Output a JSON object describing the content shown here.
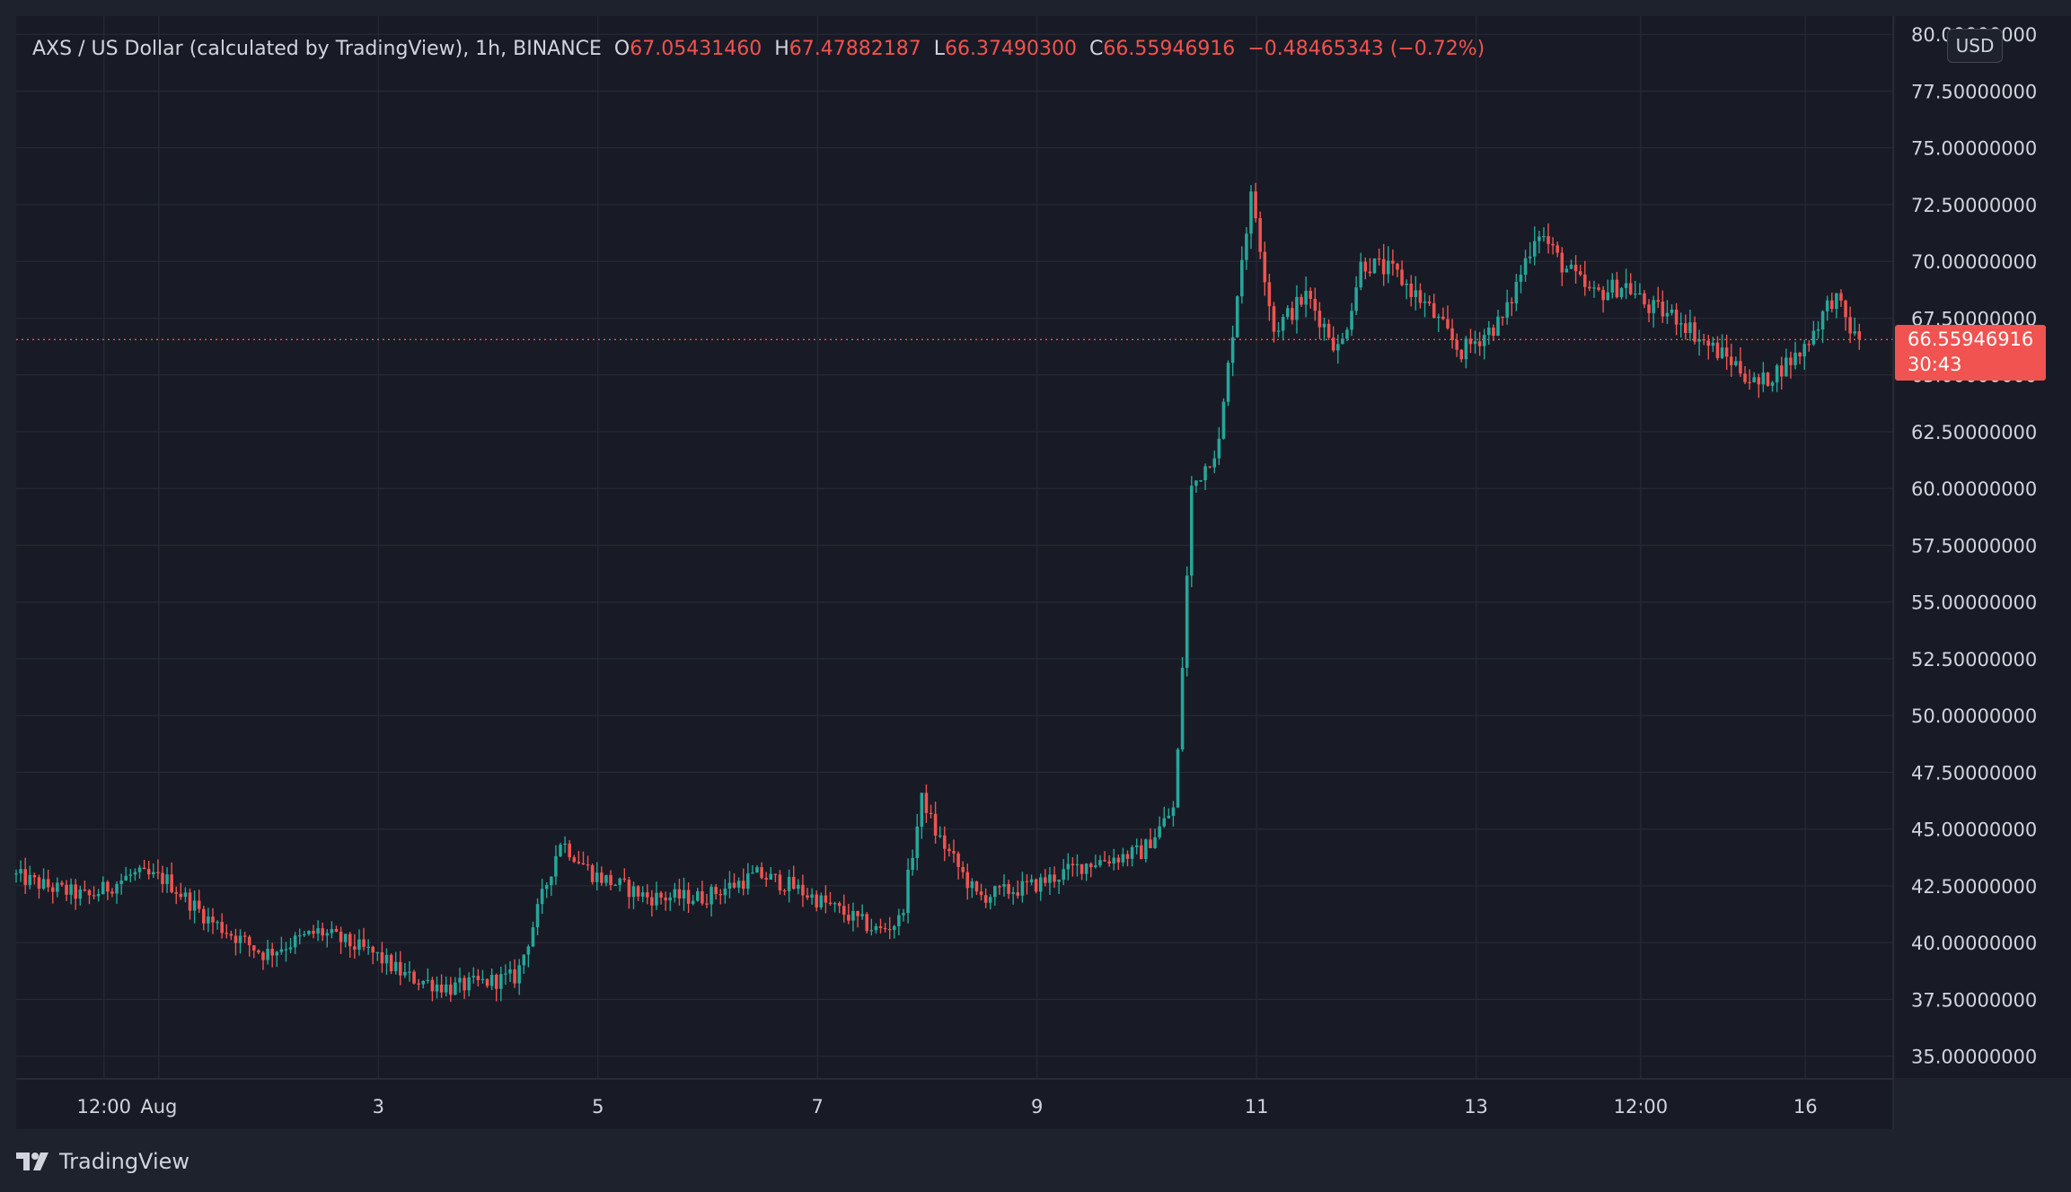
{
  "legend": {
    "symbol": "AXS / US Dollar (calculated by TradingView), 1h, BINANCE",
    "open_label": "O",
    "open": "67.05431460",
    "high_label": "H",
    "high": "67.47882187",
    "low_label": "L",
    "low": "66.37490300",
    "close_label": "C",
    "close": "66.55946916",
    "change": "−0.48465343 (−0.72%)"
  },
  "currency": "USD",
  "last_price": {
    "value": "66.55946916",
    "countdown": "30:43"
  },
  "branding": "TradingView",
  "colors": {
    "up": "#26a69a",
    "down": "#ef5350",
    "background": "#181b25",
    "text": "#d1d4dc"
  },
  "chart_data": {
    "type": "candlestick",
    "title": "AXS / US Dollar",
    "interval": "1h",
    "exchange": "BINANCE",
    "ylim": [
      34.0,
      80.8
    ],
    "y_ticks": [
      "35.00000000",
      "37.50000000",
      "40.00000000",
      "42.50000000",
      "45.00000000",
      "47.50000000",
      "50.00000000",
      "52.50000000",
      "55.00000000",
      "57.50000000",
      "60.00000000",
      "62.50000000",
      "65.00000000",
      "67.50000000",
      "70.00000000",
      "72.50000000",
      "75.00000000",
      "77.50000000",
      "80.00000000"
    ],
    "y_tick_values": [
      35,
      37.5,
      40,
      42.5,
      45,
      47.5,
      50,
      52.5,
      55,
      57.5,
      60,
      62.5,
      65,
      67.5,
      70,
      72.5,
      75,
      77.5,
      80
    ],
    "x_ticks": [
      {
        "label": "12:00",
        "day": -0.5
      },
      {
        "label": "Aug",
        "day": 0
      },
      {
        "label": "3",
        "day": 2
      },
      {
        "label": "5",
        "day": 4
      },
      {
        "label": "7",
        "day": 6
      },
      {
        "label": "9",
        "day": 8
      },
      {
        "label": "11",
        "day": 10
      },
      {
        "label": "13",
        "day": 12
      },
      {
        "label": "12:00",
        "day": 13.5
      },
      {
        "label": "16",
        "day": 15
      }
    ],
    "x_range_days": [
      -1.3,
      15.8
    ],
    "price_path_days": [
      -1.3,
      -1.0,
      -0.6,
      -0.2,
      0.1,
      0.5,
      1.0,
      1.5,
      2.0,
      2.3,
      2.7,
      3.3,
      3.7,
      4.0,
      4.5,
      5.0,
      5.5,
      5.8,
      6.2,
      6.6,
      6.8,
      7.0,
      7.1,
      7.5,
      8.0,
      8.5,
      9.0,
      9.3,
      9.45,
      9.7,
      9.9,
      10.0,
      10.2,
      10.5,
      10.8,
      11.0,
      11.3,
      11.6,
      11.9,
      12.3,
      12.6,
      12.8,
      13.1,
      13.4,
      13.6,
      13.9,
      14.1,
      14.4,
      14.6,
      15.0,
      15.3,
      15.5
    ],
    "price_path_values": [
      43.0,
      42.5,
      42.0,
      43.0,
      42.8,
      41.0,
      39.5,
      40.5,
      39.5,
      38.5,
      38.0,
      38.5,
      44.5,
      43.0,
      42.0,
      42.0,
      43.0,
      42.5,
      41.5,
      40.5,
      41.0,
      46.5,
      45.0,
      42.0,
      42.5,
      43.5,
      44.0,
      46.0,
      60.0,
      62.0,
      70.0,
      73.0,
      67.0,
      68.5,
      66.0,
      70.0,
      69.5,
      68.0,
      66.0,
      67.5,
      71.5,
      70.0,
      68.5,
      69.0,
      68.0,
      67.5,
      66.5,
      65.5,
      64.5,
      66.0,
      68.5,
      66.56
    ],
    "last_close": 66.55946916,
    "open": 67.0543146,
    "high": 67.47882187,
    "low": 66.374903,
    "close": 66.55946916,
    "change": -0.48465343,
    "change_pct": -0.72
  }
}
